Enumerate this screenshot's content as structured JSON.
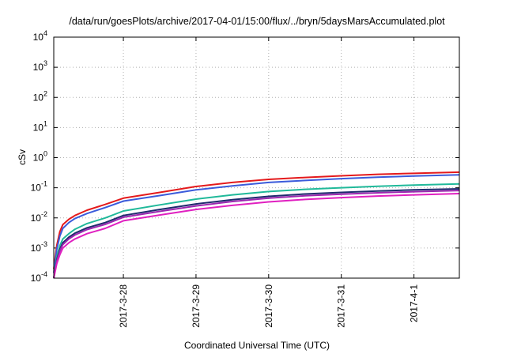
{
  "chart_data": {
    "type": "line",
    "title": "/data/run/goesPlots/archive/2017-04-01/15:00/flux/../bryn/5daysMarsAccumulated.plot",
    "xlabel": "Coordinated Universal Time (UTC)",
    "ylabel": "cSv",
    "y_scale": "log",
    "ylim": [
      0.0001,
      10000
    ],
    "y_ticks": [
      {
        "value": 0.0001,
        "base": "10",
        "exp": "-4"
      },
      {
        "value": 0.001,
        "base": "10",
        "exp": "-3"
      },
      {
        "value": 0.01,
        "base": "10",
        "exp": "-2"
      },
      {
        "value": 0.1,
        "base": "10",
        "exp": "-1"
      },
      {
        "value": 1,
        "base": "10",
        "exp": "0"
      },
      {
        "value": 10,
        "base": "10",
        "exp": "1"
      },
      {
        "value": 100,
        "base": "10",
        "exp": "2"
      },
      {
        "value": 1000,
        "base": "10",
        "exp": "3"
      },
      {
        "value": 10000,
        "base": "10",
        "exp": "4"
      }
    ],
    "xlim": [
      "2017-03-27T01:00",
      "2017-04-01T15:00"
    ],
    "x_ticks": [
      {
        "value": "2017-03-28T00:00",
        "label": "2017-3-28"
      },
      {
        "value": "2017-03-29T00:00",
        "label": "2017-3-29"
      },
      {
        "value": "2017-03-30T00:00",
        "label": "2017-3-30"
      },
      {
        "value": "2017-03-31T00:00",
        "label": "2017-3-31"
      },
      {
        "value": "2017-04-01T00:00",
        "label": "2017-4-1"
      }
    ],
    "grid": true,
    "series": [
      {
        "color": "#e41a1c",
        "x": [
          "2017-03-27T01:00",
          "2017-03-27T02:00",
          "2017-03-27T03:00",
          "2017-03-27T04:00",
          "2017-03-27T06:00",
          "2017-03-27T08:00",
          "2017-03-27T12:00",
          "2017-03-27T18:00",
          "2017-03-28T00:00",
          "2017-03-28T12:00",
          "2017-03-29T00:00",
          "2017-03-29T12:00",
          "2017-03-30T00:00",
          "2017-03-30T12:00",
          "2017-03-31T00:00",
          "2017-03-31T12:00",
          "2017-04-01T00:00",
          "2017-04-01T15:00"
        ],
        "values": [
          0.0002,
          0.0012,
          0.0035,
          0.006,
          0.009,
          0.012,
          0.018,
          0.028,
          0.045,
          0.07,
          0.11,
          0.15,
          0.19,
          0.22,
          0.25,
          0.28,
          0.3,
          0.33
        ]
      },
      {
        "color": "#3b5bdb",
        "x": [
          "2017-03-27T01:00",
          "2017-03-27T02:00",
          "2017-03-27T03:00",
          "2017-03-27T04:00",
          "2017-03-27T06:00",
          "2017-03-27T08:00",
          "2017-03-27T12:00",
          "2017-03-27T18:00",
          "2017-03-28T00:00",
          "2017-03-28T12:00",
          "2017-03-29T00:00",
          "2017-03-29T12:00",
          "2017-03-30T00:00",
          "2017-03-30T12:00",
          "2017-03-31T00:00",
          "2017-03-31T12:00",
          "2017-04-01T00:00",
          "2017-04-01T15:00"
        ],
        "values": [
          0.00015,
          0.0009,
          0.0025,
          0.0045,
          0.007,
          0.0095,
          0.014,
          0.022,
          0.036,
          0.055,
          0.085,
          0.115,
          0.15,
          0.175,
          0.2,
          0.225,
          0.245,
          0.27
        ]
      },
      {
        "color": "#20b99a",
        "x": [
          "2017-03-27T01:00",
          "2017-03-27T02:00",
          "2017-03-27T03:00",
          "2017-03-27T04:00",
          "2017-03-27T06:00",
          "2017-03-27T08:00",
          "2017-03-27T12:00",
          "2017-03-27T18:00",
          "2017-03-28T00:00",
          "2017-03-28T12:00",
          "2017-03-29T00:00",
          "2017-03-29T12:00",
          "2017-03-30T00:00",
          "2017-03-30T12:00",
          "2017-03-31T00:00",
          "2017-03-31T12:00",
          "2017-04-01T00:00",
          "2017-04-01T15:00"
        ],
        "values": [
          0.0001,
          0.0005,
          0.0012,
          0.002,
          0.003,
          0.0042,
          0.0065,
          0.01,
          0.017,
          0.027,
          0.042,
          0.058,
          0.075,
          0.089,
          0.1,
          0.112,
          0.122,
          0.135
        ]
      },
      {
        "color": "#1f2a6e",
        "x": [
          "2017-03-27T01:00",
          "2017-03-27T02:00",
          "2017-03-27T03:00",
          "2017-03-27T04:00",
          "2017-03-27T06:00",
          "2017-03-27T08:00",
          "2017-03-27T12:00",
          "2017-03-27T18:00",
          "2017-03-28T00:00",
          "2017-03-28T12:00",
          "2017-03-29T00:00",
          "2017-03-29T12:00",
          "2017-03-30T00:00",
          "2017-03-30T12:00",
          "2017-03-31T00:00",
          "2017-03-31T12:00",
          "2017-04-01T00:00",
          "2017-04-01T15:00"
        ],
        "values": [
          0.0001,
          0.0004,
          0.0009,
          0.0015,
          0.0023,
          0.0031,
          0.0047,
          0.007,
          0.012,
          0.019,
          0.029,
          0.04,
          0.052,
          0.062,
          0.07,
          0.078,
          0.085,
          0.092
        ]
      },
      {
        "color": "#9c27b0",
        "x": [
          "2017-03-27T01:00",
          "2017-03-27T02:00",
          "2017-03-27T03:00",
          "2017-03-27T04:00",
          "2017-03-27T06:00",
          "2017-03-27T08:00",
          "2017-03-27T12:00",
          "2017-03-27T18:00",
          "2017-03-28T00:00",
          "2017-03-28T12:00",
          "2017-03-29T00:00",
          "2017-03-29T12:00",
          "2017-03-30T00:00",
          "2017-03-30T12:00",
          "2017-03-31T00:00",
          "2017-03-31T12:00",
          "2017-04-01T00:00",
          "2017-04-01T15:00"
        ],
        "values": [
          0.0001,
          0.00036,
          0.0008,
          0.0013,
          0.002,
          0.0027,
          0.0041,
          0.0061,
          0.0105,
          0.0165,
          0.025,
          0.035,
          0.045,
          0.054,
          0.061,
          0.068,
          0.074,
          0.081
        ]
      },
      {
        "color": "#e020c0",
        "x": [
          "2017-03-27T01:00",
          "2017-03-27T02:00",
          "2017-03-27T03:00",
          "2017-03-27T04:00",
          "2017-03-27T06:00",
          "2017-03-27T08:00",
          "2017-03-27T12:00",
          "2017-03-27T18:00",
          "2017-03-28T00:00",
          "2017-03-28T12:00",
          "2017-03-29T00:00",
          "2017-03-29T12:00",
          "2017-03-30T00:00",
          "2017-03-30T12:00",
          "2017-03-31T00:00",
          "2017-03-31T12:00",
          "2017-04-01T00:00",
          "2017-04-01T15:00"
        ],
        "values": [
          0.0001,
          0.0003,
          0.0006,
          0.001,
          0.0015,
          0.002,
          0.003,
          0.0045,
          0.008,
          0.0125,
          0.019,
          0.026,
          0.034,
          0.041,
          0.047,
          0.053,
          0.058,
          0.064
        ]
      }
    ]
  }
}
